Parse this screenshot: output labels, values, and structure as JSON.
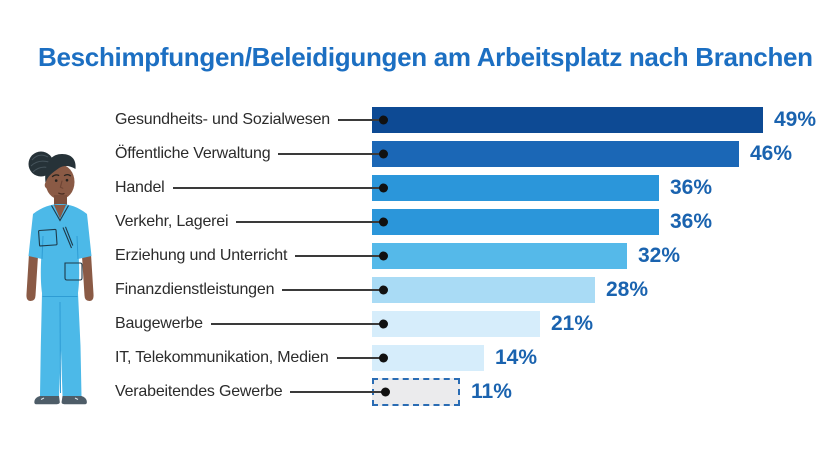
{
  "title": "Beschimpfungen/Beleidigungen am Arbeitsplatz nach Branchen",
  "colors": {
    "title": "#1c6fc2",
    "value_label": "#1a63af",
    "connector": "#3a3a3a",
    "dot": "#111111",
    "dashed_border": "#2a6cb4",
    "dashed_fill": "#ebebed",
    "background": "#ffffff"
  },
  "illustration": {
    "description": "nurse in blue scrubs",
    "scrubs": "#4cb9e8",
    "skin": "#8a5a45",
    "hair": "#263238",
    "shoes": "#4e5d68"
  },
  "chart_data": {
    "type": "bar",
    "orientation": "horizontal",
    "title": "Beschimpfungen/Beleidigungen am Arbeitsplatz nach Branchen",
    "categories": [
      "Gesundheits- und Sozialwesen",
      "Öffentliche Verwaltung",
      "Handel",
      "Verkehr, Lagerei",
      "Erziehung und Unterricht",
      "Finanzdienstleistungen",
      "Baugewerbe",
      "IT, Telekommunikation, Medien",
      "Verabeitendes Gewerbe"
    ],
    "values": [
      49,
      46,
      36,
      36,
      32,
      28,
      21,
      14,
      11
    ],
    "unit": "%",
    "value_labels": [
      "49%",
      "46%",
      "36%",
      "36%",
      "32%",
      "28%",
      "21%",
      "14%",
      "11%"
    ],
    "xlim": [
      0,
      49
    ],
    "grid": false,
    "legend": false,
    "bar_colors": [
      "#0d4a94",
      "#1b67b6",
      "#2b96da",
      "#2b96da",
      "#55b9e9",
      "#a9dbf5",
      "#d6edfb",
      "#d6edfb",
      "#ebebed"
    ],
    "bar_styles": [
      "solid",
      "solid",
      "solid",
      "solid",
      "solid",
      "solid",
      "solid",
      "solid",
      "dashed"
    ]
  }
}
